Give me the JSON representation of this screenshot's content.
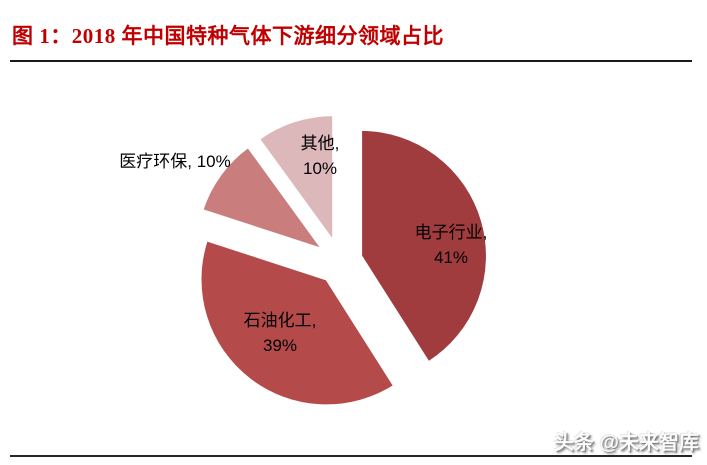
{
  "figure": {
    "title": "图 1：2018 年中国特种气体下游细分领域占比"
  },
  "watermark": {
    "text": "头条 @未来智库"
  },
  "chart_data": {
    "type": "pie",
    "title": "2018 年中国特种气体下游细分领域占比",
    "unit": "%",
    "start_angle_deg": 0,
    "direction": "clockwise",
    "exploded": true,
    "legend": "none",
    "categories": [
      "电子行业",
      "石油化工",
      "医疗环保",
      "其他"
    ],
    "values": [
      41,
      39,
      10,
      10
    ],
    "slices": [
      {
        "id": "electronics",
        "label": "电子行业",
        "value": 41,
        "color": "#A03C3E",
        "label_text": "电子行业,\n41%"
      },
      {
        "id": "petrochemical",
        "label": "石油化工",
        "value": 39,
        "color": "#B44A49",
        "label_text": "石油化工,\n39%"
      },
      {
        "id": "medical-env",
        "label": "医疗环保",
        "value": 10,
        "color": "#C97E7D",
        "label_text": "医疗环保, 10%"
      },
      {
        "id": "other",
        "label": "其他",
        "value": 10,
        "color": "#DDB8BB",
        "label_text": "其他,\n10%"
      }
    ],
    "slice_border_color": "#ffffff",
    "title_color": "#C00000"
  }
}
